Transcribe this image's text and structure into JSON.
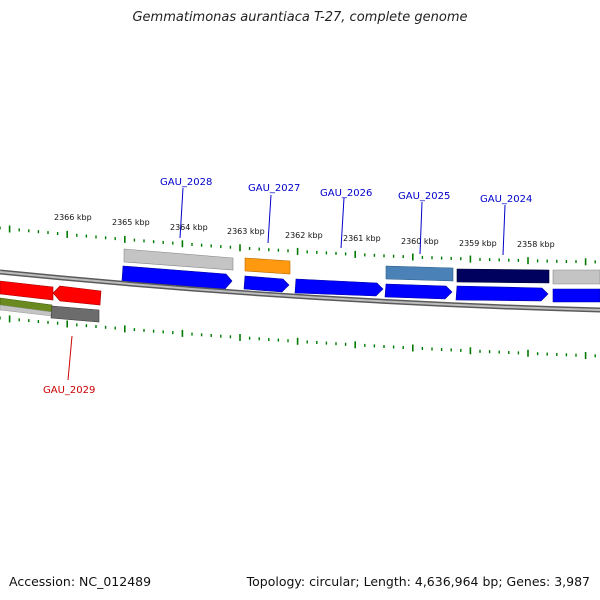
{
  "header": {
    "title": "Gemmatimonas aurantiaca T-27, complete genome"
  },
  "footer": {
    "accession": "Accession: NC_012489",
    "summary": "Topology: circular; Length: 4,636,964 bp; Genes: 3,987"
  },
  "ruler": {
    "ticks": [
      "2366 kbp",
      "2365 kbp",
      "2364 kbp",
      "2363 kbp",
      "2362 kbp",
      "2361 kbp",
      "2360 kbp",
      "2359 kbp",
      "2358 kbp"
    ]
  },
  "genes": [
    {
      "label": "GAU_2028",
      "color": "#0000cc"
    },
    {
      "label": "GAU_2027",
      "color": "#0000cc"
    },
    {
      "label": "GAU_2026",
      "color": "#0000cc"
    },
    {
      "label": "GAU_2025",
      "color": "#0000cc"
    },
    {
      "label": "GAU_2024",
      "color": "#0000cc"
    },
    {
      "label": "GAU_2029",
      "color": "#cc0000"
    }
  ],
  "colors": {
    "cds_forward": "#0000ff",
    "cds_reverse": "#ff0000",
    "backbone": "#888888",
    "tick": "#007a00",
    "light_grey": "#c4c4c4",
    "orange": "#ff9a10",
    "steel_blue": "#4a82b8",
    "navy": "#00005e",
    "olive": "#6a8a20",
    "dark_grey": "#6c6c6c"
  }
}
